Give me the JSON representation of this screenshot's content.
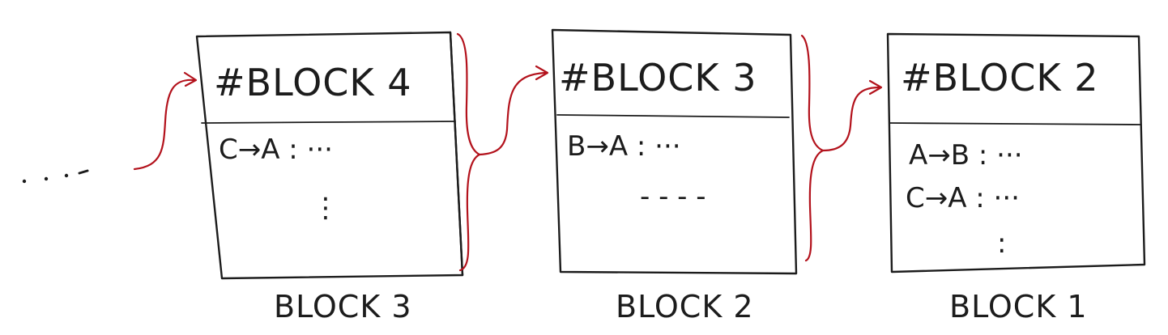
{
  "blocks": [
    {
      "header": "#BLOCK 4",
      "entries": [
        "C→A : ···",
        "⋮"
      ],
      "caption": "BLOCK 3"
    },
    {
      "header": "#BLOCK 3",
      "entries": [
        "B→A : ···",
        "- - - -"
      ],
      "caption": "BLOCK 2"
    },
    {
      "header": "#BLOCK 2",
      "entries": [
        "A→B : ···",
        "C→A : ···",
        ":"
      ],
      "caption": "BLOCK 1"
    }
  ],
  "colors": {
    "ink": "#1c1c1c",
    "link": "#b3121c"
  }
}
